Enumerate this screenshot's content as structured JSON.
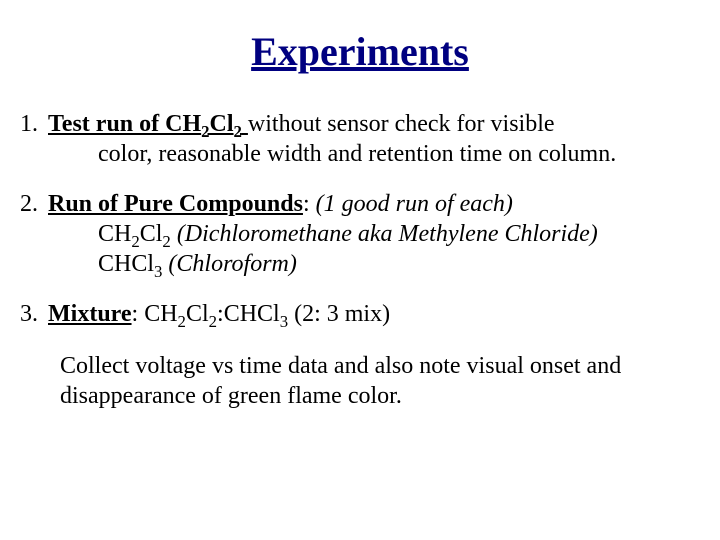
{
  "title": "Experiments",
  "colors": {
    "title_color": "#000080",
    "body_text_color": "#000000",
    "background": "#ffffff"
  },
  "typography": {
    "title_fontsize_pt": 40,
    "title_weight": "bold",
    "title_underline": true,
    "body_fontsize_pt": 24,
    "font_family": "Times New Roman"
  },
  "items": [
    {
      "number": "1.",
      "lead_bold_underlined_parts": [
        "Test run of CH",
        "Cl"
      ],
      "lead_subs": [
        "2",
        "2"
      ],
      "first_line_tail": " without sensor check for visible",
      "cont_lines": [
        "color, reasonable width and retention time on column."
      ]
    },
    {
      "number": "2.",
      "lead_bold_underlined": "Run of Pure Compounds",
      "after_lead": ":  ",
      "italic_tail": "(1 good run of each)",
      "compound_lines": [
        {
          "formula_parts": [
            "CH",
            "Cl"
          ],
          "formula_subs": [
            "2",
            "2"
          ],
          "italic_name": " (Dichloromethane aka Methylene Chloride)"
        },
        {
          "formula_parts": [
            "CHCl"
          ],
          "formula_subs": [
            "3"
          ],
          "italic_name": " (Chloroform)"
        }
      ]
    },
    {
      "number": "3.",
      "lead_bold_underlined": "Mixture",
      "after_lead": ": ",
      "formula1_parts": [
        "CH",
        "Cl"
      ],
      "formula1_subs": [
        "2",
        "2"
      ],
      "colon": ":",
      "formula2_parts": [
        "CHCl"
      ],
      "formula2_subs": [
        "3"
      ],
      "ratio_note": "  (2: 3 mix)"
    }
  ],
  "closing": "Collect voltage vs time data and also note visual onset and disappearance of green flame color."
}
